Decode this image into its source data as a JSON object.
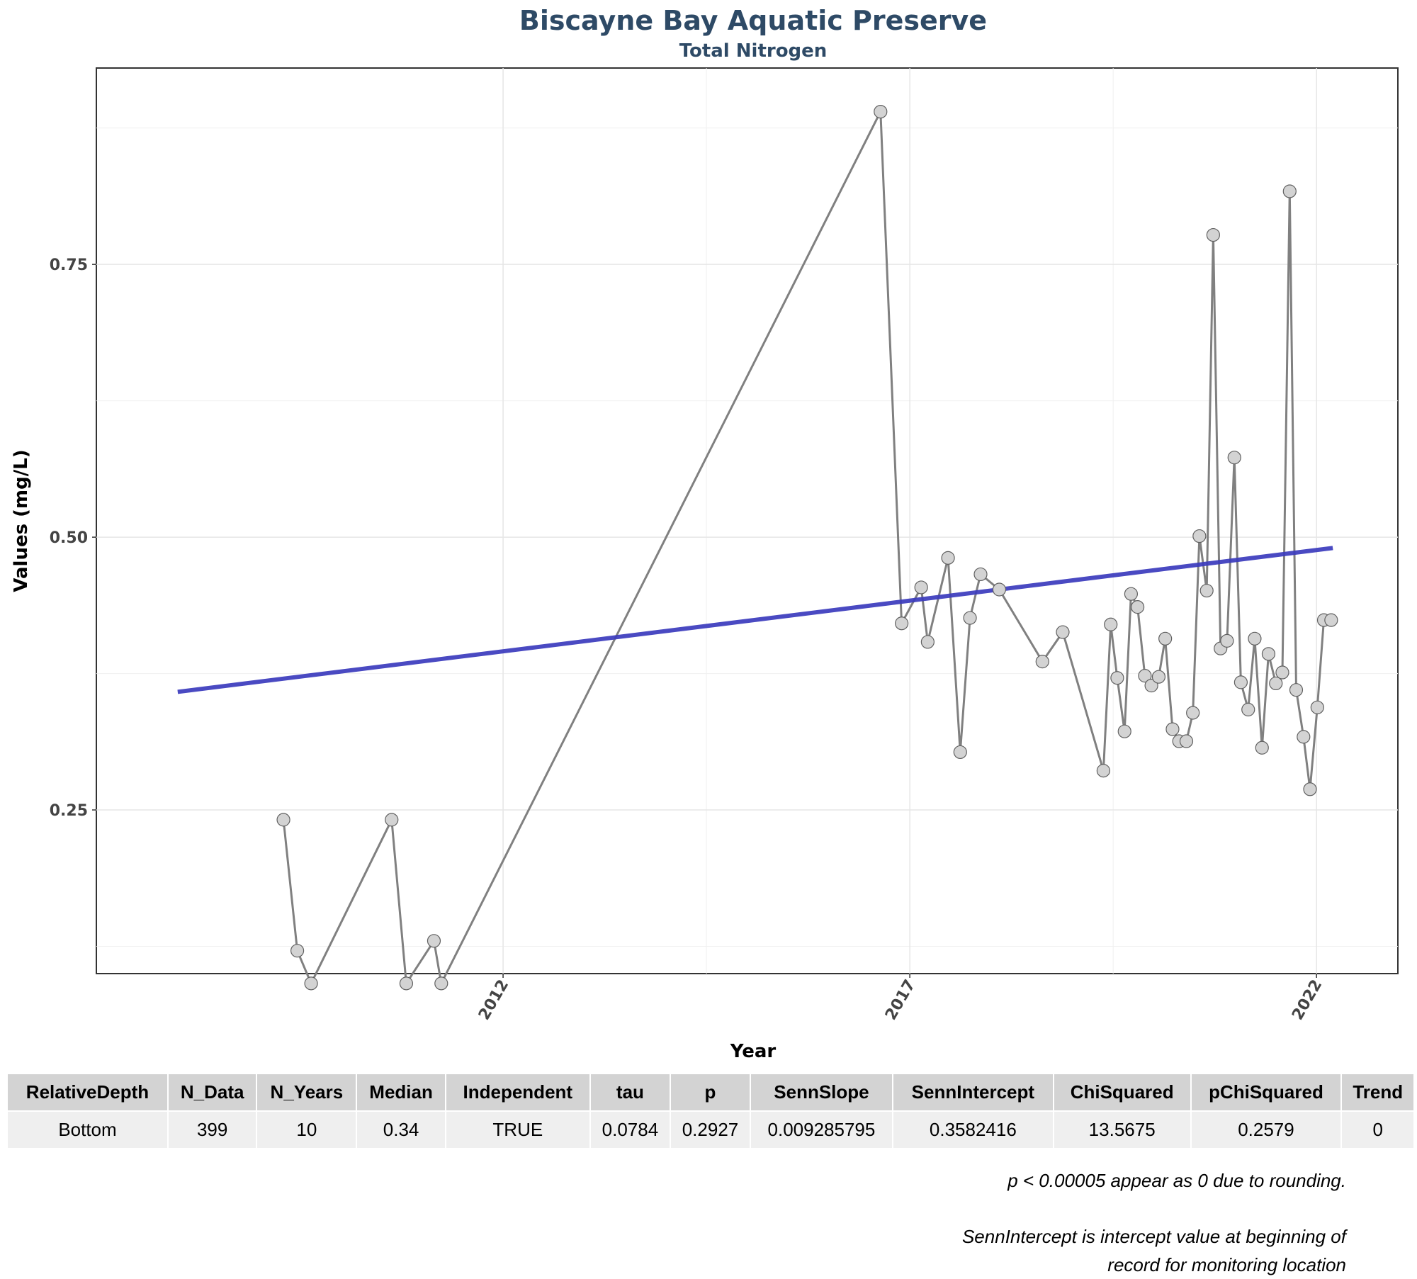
{
  "chart_data": {
    "type": "line",
    "title": "Biscayne Bay Aquatic Preserve",
    "subtitle": "Total Nitrogen",
    "xlabel": "Year",
    "ylabel": "Values (mg/L)",
    "xlim": [
      2007.0,
      2023.0
    ],
    "ylim": [
      0.1,
      0.93
    ],
    "x_ticks": [
      2012,
      2017,
      2022
    ],
    "x_tick_labels": [
      "2012",
      "2017",
      "2022"
    ],
    "y_ticks": [
      0.25,
      0.5,
      0.75
    ],
    "y_tick_labels": [
      "0.25",
      "0.50",
      "0.75"
    ],
    "grid": true,
    "series": [
      {
        "x": [
          2009.3,
          2009.47,
          2009.64,
          2010.63,
          2010.81,
          2011.15,
          2011.24,
          2016.64,
          2016.9,
          2017.14,
          2017.22,
          2017.47,
          2017.62,
          2017.74,
          2017.87,
          2018.1,
          2018.63,
          2018.88,
          2019.38,
          2019.47,
          2019.55,
          2019.64,
          2019.72,
          2019.8,
          2019.89,
          2019.97,
          2020.06,
          2020.14,
          2020.23,
          2020.31,
          2020.4,
          2020.48,
          2020.56,
          2020.65,
          2020.73,
          2020.82,
          2020.9,
          2020.99,
          2021.07,
          2021.16,
          2021.24,
          2021.33,
          2021.41,
          2021.5,
          2021.58,
          2021.67,
          2021.75,
          2021.84,
          2021.92,
          2022.01,
          2022.09,
          2022.18
        ],
        "values": [
          0.241,
          0.121,
          0.091,
          0.241,
          0.091,
          0.13,
          0.091,
          0.89,
          0.421,
          0.454,
          0.404,
          0.481,
          0.303,
          0.426,
          0.466,
          0.452,
          0.386,
          0.413,
          0.286,
          0.42,
          0.371,
          0.322,
          0.448,
          0.436,
          0.373,
          0.364,
          0.372,
          0.407,
          0.324,
          0.313,
          0.313,
          0.339,
          0.501,
          0.451,
          0.777,
          0.398,
          0.405,
          0.573,
          0.367,
          0.342,
          0.407,
          0.307,
          0.393,
          0.366,
          0.376,
          0.817,
          0.36,
          0.317,
          0.269,
          0.344,
          0.424,
          0.424
        ]
      }
    ],
    "trend_line": {
      "x": [
        2008.0,
        2022.2
      ],
      "y": [
        0.3582416,
        0.4901
      ]
    }
  },
  "stats_table": {
    "headers": [
      "RelativeDepth",
      "N_Data",
      "N_Years",
      "Median",
      "Independent",
      "tau",
      "p",
      "SennSlope",
      "SennIntercept",
      "ChiSquared",
      "pChiSquared",
      "Trend"
    ],
    "rows": [
      [
        "Bottom",
        "399",
        "10",
        "0.34",
        "TRUE",
        "0.0784",
        "0.2927",
        "0.009285795",
        "0.3582416",
        "13.5675",
        "0.2579",
        "0"
      ]
    ]
  },
  "notes": {
    "rounding": "p < 0.00005 appear as 0 due to rounding.",
    "intercept_line1": "SennIntercept is intercept value at beginning of",
    "intercept_line2": "record for monitoring location"
  },
  "colors": {
    "series_line": "#808080",
    "point_fill": "#d3d3d3",
    "trend": "#3b3bbd",
    "title": "#2e4a66"
  }
}
